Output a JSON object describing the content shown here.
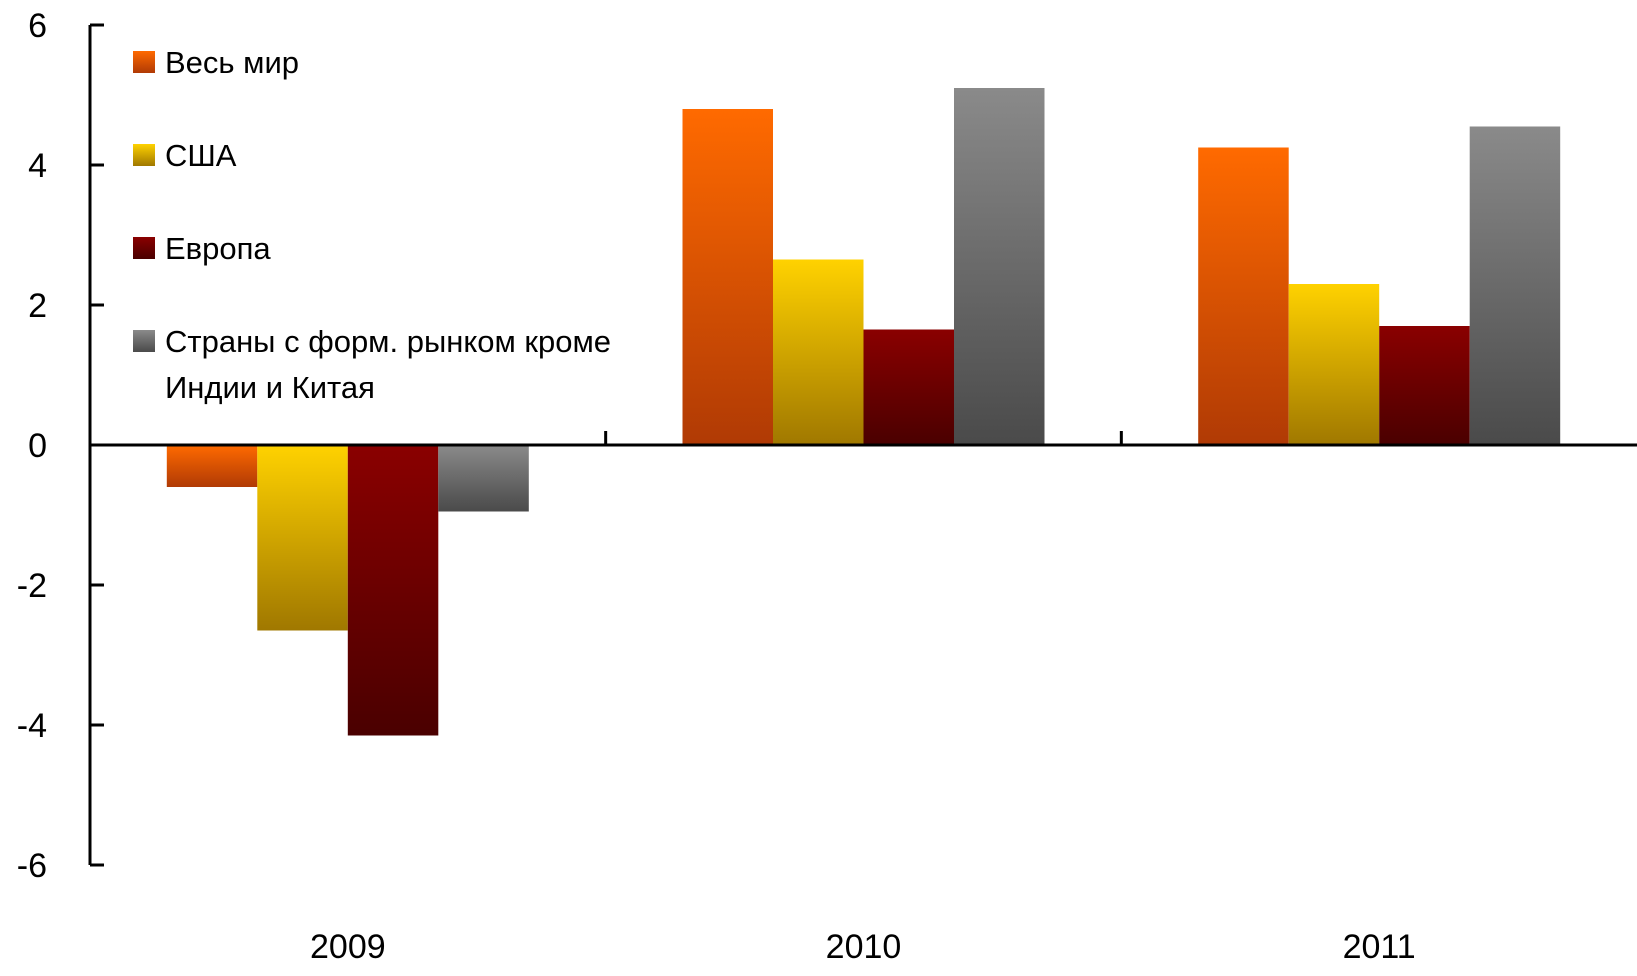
{
  "chart_data": {
    "type": "bar",
    "categories": [
      "2009",
      "2010",
      "2011"
    ],
    "ylim": [
      -6,
      6
    ],
    "yticks": [
      "6",
      "4",
      "2",
      "0",
      "-2",
      "-4",
      "-6"
    ],
    "ytick_values": [
      6,
      4,
      2,
      0,
      -2,
      -4,
      -6
    ],
    "grid": false,
    "legend_position": "top-left",
    "series": [
      {
        "name": "Весь мир",
        "values": [
          -0.6,
          4.8,
          4.25
        ],
        "color": "#ff6a00",
        "color_dark": "#b03a05"
      },
      {
        "name": "США",
        "values": [
          -2.65,
          2.65,
          2.3
        ],
        "color": "#ffd200",
        "color_dark": "#a07800"
      },
      {
        "name": "Европа",
        "values": [
          -4.15,
          1.65,
          1.7
        ],
        "color": "#8a0000",
        "color_dark": "#4a0000"
      },
      {
        "name": "Страны с форм. рынком кроме\nИндии и Китая",
        "values": [
          -0.95,
          5.1,
          4.55
        ],
        "color": "#8a8a8a",
        "color_dark": "#4a4a4a"
      }
    ]
  }
}
